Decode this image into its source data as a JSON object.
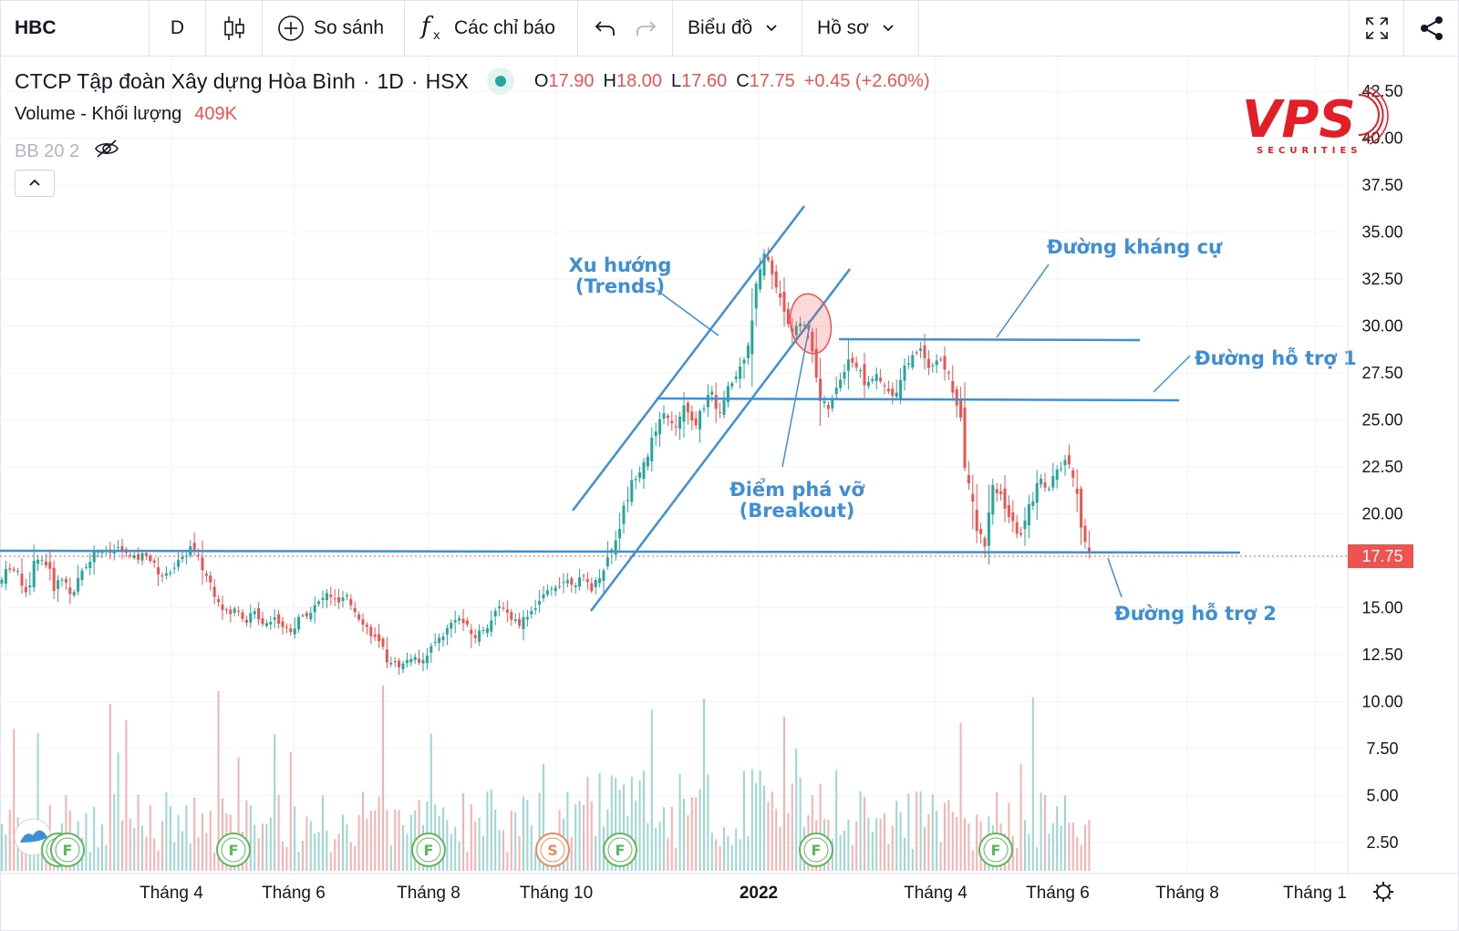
{
  "toolbar": {
    "symbol": "HBC",
    "interval": "D",
    "compare_label": "So sánh",
    "indicators_label": "Các chỉ báo",
    "chart_label": "Biểu đồ",
    "profile_label": "Hồ sơ",
    "icons": [
      "candles-icon",
      "plus-circle-icon",
      "function-icon",
      "undo-icon",
      "redo-icon",
      "chevron-down-icon",
      "fullscreen-icon",
      "share-icon"
    ]
  },
  "legend": {
    "company": "CTCP Tập đoàn Xây dựng Hòa Bình",
    "interval": "1D",
    "exchange": "HSX",
    "ohlc": [
      {
        "k": "O",
        "v": "17.90"
      },
      {
        "k": "H",
        "v": "18.00"
      },
      {
        "k": "L",
        "v": "17.60"
      },
      {
        "k": "C",
        "v": "17.75"
      }
    ],
    "change": "+0.45 (+2.60%)",
    "volume_label": "Volume - Khối lượng",
    "volume_value": "409K",
    "bb_label": "BB 20 2"
  },
  "logo": {
    "brand": "VPS",
    "sub": "SECURITIES",
    "color": "#e41e26"
  },
  "colors": {
    "up": "#26a69a",
    "down": "#ef5350",
    "annotation": "#3d8fd6",
    "price_tag": "#ef5350"
  },
  "chart_data": {
    "type": "candlestick",
    "y_ticks": [
      "42.50",
      "40.00",
      "37.50",
      "35.00",
      "32.50",
      "30.00",
      "27.50",
      "25.00",
      "22.50",
      "20.00",
      "17.75",
      "15.00",
      "12.50",
      "10.00",
      "7.50",
      "5.00",
      "2.50"
    ],
    "y_range": [
      0,
      44
    ],
    "last_price": "17.75",
    "x_ticks": [
      "Tháng 4",
      "Tháng 6",
      "Tháng 8",
      "Tháng 10",
      "2022",
      "Tháng 4",
      "Tháng 6",
      "Tháng 8",
      "Tháng 1"
    ],
    "price_path": [
      [
        0,
        16.3
      ],
      [
        10,
        17.2
      ],
      [
        20,
        16.8
      ],
      [
        30,
        15.8
      ],
      [
        40,
        17.8
      ],
      [
        50,
        17.4
      ],
      [
        60,
        16.2
      ],
      [
        70,
        16.6
      ],
      [
        80,
        15.6
      ],
      [
        90,
        17.0
      ],
      [
        100,
        17.8
      ],
      [
        110,
        18.1
      ],
      [
        120,
        17.9
      ],
      [
        130,
        18.2
      ],
      [
        140,
        17.8
      ],
      [
        150,
        17.6
      ],
      [
        160,
        17.9
      ],
      [
        170,
        17.2
      ],
      [
        180,
        16.6
      ],
      [
        190,
        17.2
      ],
      [
        200,
        17.6
      ],
      [
        210,
        18.3
      ],
      [
        220,
        17.3
      ],
      [
        230,
        16.4
      ],
      [
        240,
        15.4
      ],
      [
        250,
        14.6
      ],
      [
        260,
        15.0
      ],
      [
        270,
        14.3
      ],
      [
        280,
        14.8
      ],
      [
        290,
        14.1
      ],
      [
        300,
        14.6
      ],
      [
        310,
        14.0
      ],
      [
        320,
        13.8
      ],
      [
        330,
        14.5
      ],
      [
        340,
        14.8
      ],
      [
        350,
        15.3
      ],
      [
        360,
        15.8
      ],
      [
        370,
        15.2
      ],
      [
        380,
        15.6
      ],
      [
        390,
        14.8
      ],
      [
        400,
        14.1
      ],
      [
        410,
        13.5
      ],
      [
        420,
        12.6
      ],
      [
        430,
        12.1
      ],
      [
        440,
        11.9
      ],
      [
        450,
        12.4
      ],
      [
        460,
        12.2
      ],
      [
        470,
        12.7
      ],
      [
        480,
        13.3
      ],
      [
        490,
        13.8
      ],
      [
        500,
        14.6
      ],
      [
        510,
        14.1
      ],
      [
        520,
        13.4
      ],
      [
        530,
        13.9
      ],
      [
        540,
        14.4
      ],
      [
        550,
        15.2
      ],
      [
        560,
        14.5
      ],
      [
        570,
        14.2
      ],
      [
        580,
        14.7
      ],
      [
        590,
        15.3
      ],
      [
        600,
        15.8
      ],
      [
        610,
        16.2
      ],
      [
        620,
        16.5
      ],
      [
        630,
        16.3
      ],
      [
        640,
        16.6
      ],
      [
        650,
        16.0
      ],
      [
        660,
        17.0
      ],
      [
        670,
        18.0
      ],
      [
        680,
        19.5
      ],
      [
        690,
        21.2
      ],
      [
        700,
        22.4
      ],
      [
        710,
        23.2
      ],
      [
        720,
        24.4
      ],
      [
        730,
        25.5
      ],
      [
        740,
        24.3
      ],
      [
        750,
        25.8
      ],
      [
        760,
        24.5
      ],
      [
        770,
        25.6
      ],
      [
        780,
        26.5
      ],
      [
        790,
        25.3
      ],
      [
        800,
        26.8
      ],
      [
        810,
        27.5
      ],
      [
        820,
        29.2
      ],
      [
        830,
        32.2
      ],
      [
        840,
        34.0
      ],
      [
        850,
        32.4
      ],
      [
        860,
        30.6
      ],
      [
        870,
        29.6
      ],
      [
        880,
        30.4
      ],
      [
        890,
        29.2
      ],
      [
        900,
        26.0
      ],
      [
        910,
        25.6
      ],
      [
        920,
        27.0
      ],
      [
        930,
        28.4
      ],
      [
        940,
        27.8
      ],
      [
        950,
        26.9
      ],
      [
        960,
        27.4
      ],
      [
        970,
        26.7
      ],
      [
        980,
        26.2
      ],
      [
        990,
        27.8
      ],
      [
        1000,
        28.3
      ],
      [
        1010,
        28.9
      ],
      [
        1020,
        27.8
      ],
      [
        1030,
        28.3
      ],
      [
        1040,
        27.4
      ],
      [
        1050,
        25.8
      ],
      [
        1060,
        22.4
      ],
      [
        1070,
        19.2
      ],
      [
        1080,
        18.5
      ],
      [
        1090,
        21.4
      ],
      [
        1100,
        20.8
      ],
      [
        1110,
        19.4
      ],
      [
        1120,
        18.9
      ],
      [
        1130,
        20.5
      ],
      [
        1140,
        21.9
      ],
      [
        1150,
        21.3
      ],
      [
        1160,
        22.4
      ],
      [
        1170,
        22.8
      ],
      [
        1180,
        21.0
      ],
      [
        1190,
        18.6
      ],
      [
        1195,
        17.75
      ]
    ],
    "annotations": [
      {
        "text_lines": [
          "Xu hướng",
          "(Trends)"
        ]
      },
      {
        "text_lines": [
          "Đường kháng cự"
        ]
      },
      {
        "text_lines": [
          "Đường hỗ trợ 1"
        ]
      },
      {
        "text_lines": [
          "Điểm phá vỡ",
          "(Breakout)"
        ]
      },
      {
        "text_lines": [
          "Đường hỗ trợ 2"
        ]
      }
    ],
    "events": [
      {
        "label": "F",
        "kind": "F"
      },
      {
        "label": "F",
        "kind": "F"
      },
      {
        "label": "F",
        "kind": "F"
      },
      {
        "label": "F",
        "kind": "F"
      },
      {
        "label": "S",
        "kind": "S"
      },
      {
        "label": "F",
        "kind": "F"
      },
      {
        "label": "F",
        "kind": "F"
      },
      {
        "label": "F",
        "kind": "F"
      }
    ]
  }
}
